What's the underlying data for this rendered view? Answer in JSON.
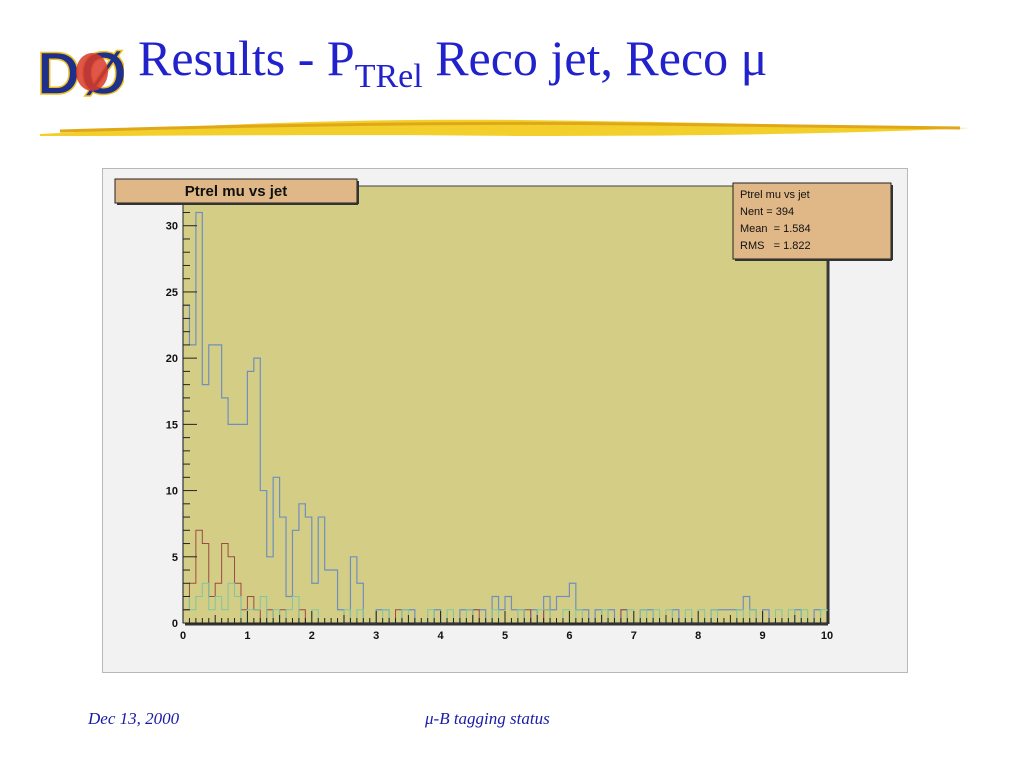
{
  "slide": {
    "logo_text": "DØ",
    "title_main": "Results - P",
    "title_sub": "TRel",
    "title_rest": " Reco jet, Reco μ",
    "footer_left": "Dec 13, 2000",
    "footer_center": "μ-B tagging status"
  },
  "colors": {
    "title": "#2222cc",
    "frame_fill": "#d4cd86",
    "canvas_bg": "#f2f2f2",
    "label_box": "#e0b888",
    "series_blue": "#6f8fc0",
    "series_red": "#9b4b43",
    "series_green": "#7cc7a4"
  },
  "chart_data": {
    "type": "histogram",
    "title": "Ptrel mu vs jet",
    "xlim": [
      0,
      10
    ],
    "ylim": [
      0,
      33
    ],
    "bin_width": 0.1,
    "x_ticks": [
      0,
      1,
      2,
      3,
      4,
      5,
      6,
      7,
      8,
      9,
      10
    ],
    "y_ticks": [
      0,
      5,
      10,
      15,
      20,
      25,
      30
    ],
    "stats_box": {
      "title": "Ptrel mu vs jet",
      "rows": [
        {
          "label": "Nent = 394",
          "value": ""
        },
        {
          "label": "Mean  = ",
          "value": "1.584"
        },
        {
          "label": "RMS   = ",
          "value": "1.822"
        }
      ]
    },
    "series": [
      {
        "color": "#6f8fc0",
        "values": [
          24,
          21,
          31,
          18,
          21,
          21,
          17,
          15,
          15,
          15,
          19,
          20,
          10,
          5,
          11,
          8,
          2,
          7,
          9,
          8,
          3,
          8,
          4,
          4,
          1,
          0,
          5,
          3,
          0,
          0,
          1,
          1,
          0,
          0,
          1,
          1,
          0,
          0,
          0,
          1,
          0,
          0,
          0,
          1,
          1,
          1,
          1,
          0,
          2,
          1,
          2,
          1,
          1,
          0,
          1,
          0,
          2,
          1,
          2,
          2,
          3,
          1,
          1,
          0,
          1,
          0,
          1,
          0,
          1,
          0,
          0,
          1,
          1,
          0,
          0,
          0,
          1,
          0,
          0,
          0,
          0,
          0,
          1,
          1,
          1,
          1,
          1,
          2,
          1,
          0,
          1,
          0,
          0,
          0,
          0,
          1,
          0,
          0,
          1,
          0
        ],
        "line_width": 1.2
      },
      {
        "color": "#9b4b43",
        "values": [
          1,
          3,
          7,
          6,
          2,
          3,
          6,
          5,
          3,
          1,
          2,
          1,
          0,
          1,
          0,
          1,
          0,
          0,
          1,
          0,
          0,
          0,
          0,
          0,
          0,
          0,
          0,
          0,
          0,
          0,
          0,
          0,
          0,
          1,
          0,
          0,
          0,
          0,
          0,
          0,
          0,
          0,
          0,
          0,
          0,
          1,
          0,
          0,
          0,
          0,
          0,
          0,
          0,
          1,
          0,
          0,
          1,
          0,
          0,
          0,
          0,
          0,
          0,
          0,
          0,
          0,
          0,
          0,
          1,
          0,
          0,
          0,
          0,
          0,
          0,
          0,
          0,
          0,
          0,
          0,
          0,
          0,
          0,
          0,
          0,
          0,
          0,
          0,
          0,
          0,
          0,
          0,
          0,
          0,
          0,
          0,
          0,
          0,
          0,
          0
        ],
        "line_width": 1
      },
      {
        "color": "#7cc7a4",
        "values": [
          2,
          1,
          2,
          3,
          1,
          2,
          1,
          3,
          2,
          0,
          1,
          1,
          2,
          0,
          1,
          0,
          1,
          2,
          0,
          0,
          1,
          0,
          0,
          0,
          0,
          1,
          0,
          1,
          0,
          0,
          0,
          1,
          0,
          0,
          1,
          0,
          0,
          0,
          1,
          0,
          0,
          1,
          0,
          0,
          1,
          0,
          0,
          0,
          1,
          0,
          0,
          0,
          1,
          0,
          0,
          1,
          1,
          0,
          0,
          1,
          0,
          1,
          0,
          0,
          0,
          1,
          0,
          0,
          0,
          1,
          0,
          1,
          0,
          1,
          0,
          1,
          0,
          0,
          1,
          0,
          1,
          0,
          1,
          0,
          0,
          0,
          1,
          0,
          1,
          0,
          0,
          0,
          1,
          0,
          1,
          0,
          1,
          0,
          0,
          1
        ],
        "line_width": 1
      }
    ]
  }
}
